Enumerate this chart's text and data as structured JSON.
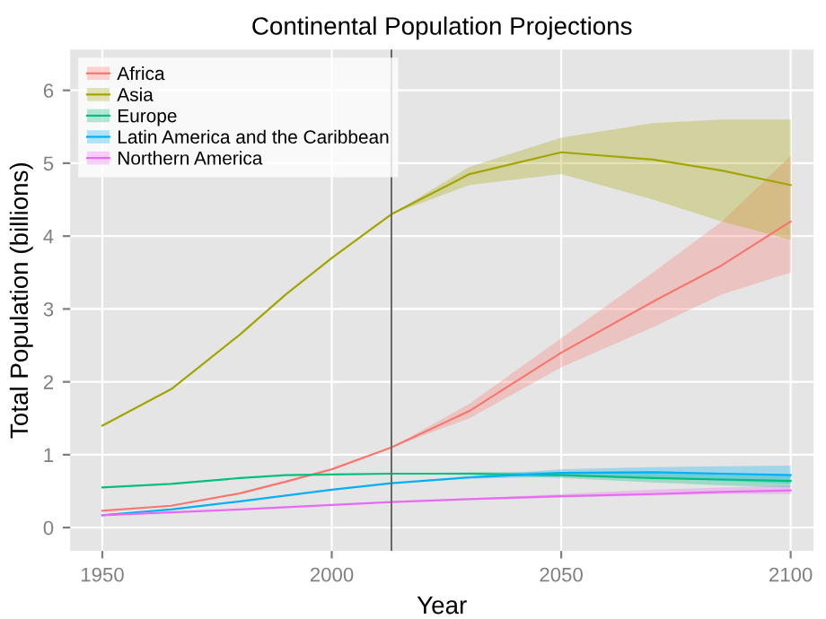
{
  "chart_data": {
    "type": "line",
    "title": "Continental Population Projections",
    "xlabel": "Year",
    "ylabel": "Total Population (billions)",
    "x": [
      1950,
      1965,
      1980,
      1990,
      2000,
      2013,
      2030,
      2050,
      2070,
      2085,
      2100
    ],
    "series": [
      {
        "name": "Africa",
        "color": "#f8766d",
        "values": [
          0.23,
          0.3,
          0.47,
          0.63,
          0.8,
          1.1,
          1.6,
          2.4,
          3.1,
          3.6,
          4.2
        ],
        "lower": [
          null,
          null,
          null,
          null,
          null,
          1.1,
          1.5,
          2.2,
          2.75,
          3.2,
          3.5
        ],
        "upper": [
          null,
          null,
          null,
          null,
          null,
          1.1,
          1.7,
          2.6,
          3.5,
          4.2,
          5.1
        ]
      },
      {
        "name": "Asia",
        "color": "#a3a500",
        "values": [
          1.4,
          1.9,
          2.65,
          3.2,
          3.7,
          4.3,
          4.85,
          5.15,
          5.05,
          4.9,
          4.7
        ],
        "lower": [
          null,
          null,
          null,
          null,
          null,
          4.3,
          4.7,
          4.85,
          4.5,
          4.2,
          3.95
        ],
        "upper": [
          null,
          null,
          null,
          null,
          null,
          4.3,
          4.95,
          5.35,
          5.55,
          5.6,
          5.6
        ]
      },
      {
        "name": "Europe",
        "color": "#00bf7d",
        "values": [
          0.55,
          0.6,
          0.68,
          0.72,
          0.73,
          0.74,
          0.74,
          0.72,
          0.68,
          0.66,
          0.64
        ],
        "lower": [
          null,
          null,
          null,
          null,
          null,
          0.74,
          0.72,
          0.68,
          0.62,
          0.58,
          0.55
        ],
        "upper": [
          null,
          null,
          null,
          null,
          null,
          0.74,
          0.76,
          0.76,
          0.75,
          0.74,
          0.72
        ]
      },
      {
        "name": "Latin America and the Caribbean",
        "color": "#00b0f6",
        "values": [
          0.17,
          0.25,
          0.36,
          0.44,
          0.52,
          0.61,
          0.69,
          0.75,
          0.76,
          0.74,
          0.72
        ],
        "lower": [
          null,
          null,
          null,
          null,
          null,
          0.61,
          0.67,
          0.7,
          0.68,
          0.64,
          0.6
        ],
        "upper": [
          null,
          null,
          null,
          null,
          null,
          0.61,
          0.7,
          0.8,
          0.83,
          0.84,
          0.85
        ]
      },
      {
        "name": "Northern America",
        "color": "#e76bf3",
        "values": [
          0.17,
          0.21,
          0.25,
          0.28,
          0.31,
          0.35,
          0.39,
          0.43,
          0.46,
          0.49,
          0.51
        ],
        "lower": [
          null,
          null,
          null,
          null,
          null,
          0.35,
          0.38,
          0.41,
          0.44,
          0.46,
          0.46
        ],
        "upper": [
          null,
          null,
          null,
          null,
          null,
          0.35,
          0.4,
          0.46,
          0.52,
          0.55,
          0.58
        ]
      }
    ],
    "ref_lines": [
      {
        "axis": "x",
        "value": 2013,
        "label": null,
        "color": "#666666"
      }
    ],
    "xlim": [
      1943,
      2105
    ],
    "ylim": [
      -0.32,
      6.56
    ],
    "xticks": [
      1950,
      2000,
      2050,
      2100
    ],
    "yticks": [
      0,
      1,
      2,
      3,
      4,
      5,
      6
    ],
    "grid": true,
    "legend": "top left",
    "marker": "none",
    "line_style": "solid"
  }
}
